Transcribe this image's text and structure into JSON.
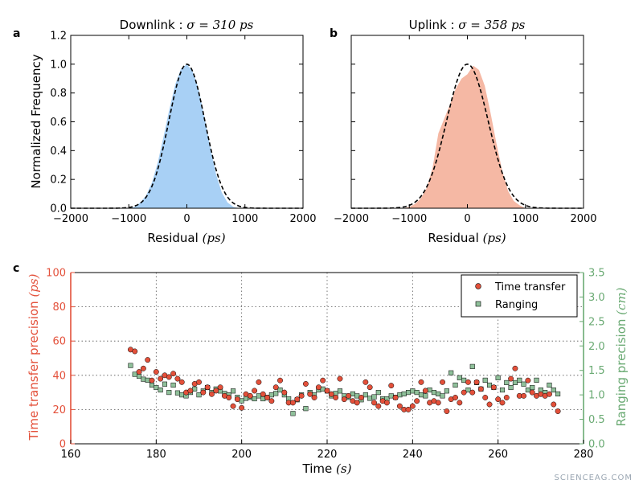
{
  "chart_data": [
    {
      "panel": "a",
      "type": "area",
      "title_prefix": "Downlink : ",
      "title_math": "σ = 310 ps",
      "xlabel": "Residual",
      "xlabel_unit": "(ps)",
      "ylabel": "Normalized Frequency",
      "xlim": [
        -2000,
        2000
      ],
      "ylim": [
        0,
        1.2
      ],
      "xticks": [
        "−2000",
        "−1000",
        "0",
        "1000",
        "2000"
      ],
      "yticks": [
        "0.0",
        "0.2",
        "0.4",
        "0.6",
        "0.8",
        "1.0",
        "1.2"
      ],
      "fill_color": "#a8d0f5",
      "fit_sigma": 310,
      "fit_center": 0,
      "series": [
        {
          "name": "histogram",
          "x": [
            -900,
            -800,
            -700,
            -600,
            -500,
            -400,
            -300,
            -200,
            -100,
            0,
            100,
            200,
            300,
            400,
            500,
            600,
            700,
            800,
            900
          ],
          "values": [
            0.01,
            0.04,
            0.09,
            0.18,
            0.32,
            0.5,
            0.69,
            0.86,
            0.97,
            1.0,
            0.95,
            0.83,
            0.64,
            0.43,
            0.24,
            0.11,
            0.04,
            0.01,
            0.0
          ]
        }
      ]
    },
    {
      "panel": "b",
      "type": "area",
      "title_prefix": "Uplink : ",
      "title_math": "σ = 358 ps",
      "xlabel": "Residual",
      "xlabel_unit": "(ps)",
      "xlim": [
        -2000,
        2000
      ],
      "ylim": [
        0,
        1.2
      ],
      "xticks": [
        "−2000",
        "−1000",
        "0",
        "1000",
        "2000"
      ],
      "yticks": [],
      "fill_color": "#f5b8a4",
      "fit_sigma": 358,
      "fit_center": 0,
      "series": [
        {
          "name": "histogram",
          "x": [
            -1000,
            -900,
            -800,
            -700,
            -600,
            -500,
            -400,
            -300,
            -200,
            -100,
            0,
            100,
            200,
            300,
            400,
            500,
            600,
            700,
            800,
            900,
            1000
          ],
          "values": [
            0.01,
            0.03,
            0.07,
            0.14,
            0.28,
            0.52,
            0.62,
            0.72,
            0.83,
            0.9,
            0.93,
            0.99,
            0.96,
            0.85,
            0.66,
            0.45,
            0.26,
            0.12,
            0.05,
            0.02,
            0.0
          ]
        }
      ]
    },
    {
      "panel": "c",
      "type": "scatter",
      "xlabel": "Time",
      "xlabel_unit": "(s)",
      "ylabel_left": "Time transfer precision",
      "ylabel_left_unit": "(ps)",
      "ylabel_right": "Ranging precision",
      "ylabel_right_unit": "(cm)",
      "xlim": [
        160,
        280
      ],
      "ylim_left": [
        0,
        100
      ],
      "ylim_right": [
        0,
        3.5
      ],
      "xticks": [
        "160",
        "180",
        "200",
        "220",
        "240",
        "260",
        "280"
      ],
      "yticks_left": [
        "0",
        "20",
        "40",
        "60",
        "80",
        "100"
      ],
      "yticks_right": [
        "0.0",
        "0.5",
        "1.0",
        "1.5",
        "2.0",
        "2.5",
        "3.0",
        "3.5"
      ],
      "left_color": "#e3503a",
      "right_color": "#6aaa73",
      "legend_location": "top-right",
      "series": [
        {
          "name": "Time transfer",
          "color": "#e3503a",
          "axis": "left",
          "x": [
            174,
            175,
            176,
            177,
            178,
            179,
            180,
            181,
            182,
            183,
            184,
            185,
            186,
            187,
            188,
            189,
            190,
            191,
            192,
            193,
            194,
            195,
            196,
            197,
            198,
            199,
            200,
            201,
            202,
            203,
            204,
            205,
            206,
            207,
            208,
            209,
            210,
            211,
            212,
            213,
            214,
            215,
            216,
            217,
            218,
            219,
            220,
            221,
            222,
            223,
            224,
            225,
            226,
            227,
            228,
            229,
            230,
            231,
            232,
            233,
            234,
            235,
            236,
            237,
            238,
            239,
            240,
            241,
            242,
            243,
            244,
            245,
            246,
            247,
            248,
            249,
            250,
            251,
            252,
            253,
            254,
            255,
            256,
            257,
            258,
            259,
            260,
            261,
            262,
            263,
            264,
            265,
            266,
            267,
            268,
            269,
            270,
            271,
            272,
            273,
            274
          ],
          "values": [
            55,
            54,
            42,
            44,
            49,
            37,
            42,
            38,
            40,
            39,
            41,
            38,
            36,
            30,
            31,
            35,
            36,
            30,
            33,
            29,
            31,
            33,
            28,
            27,
            22,
            26,
            21,
            29,
            28,
            31,
            36,
            29,
            27,
            25,
            33,
            37,
            30,
            24,
            24,
            26,
            28,
            35,
            29,
            27,
            33,
            37,
            31,
            29,
            27,
            38,
            26,
            28,
            25,
            24,
            27,
            36,
            33,
            24,
            22,
            25,
            24,
            34,
            27,
            22,
            20,
            20,
            22,
            25,
            36,
            31,
            24,
            25,
            24,
            36,
            19,
            26,
            27,
            24,
            30,
            36,
            30,
            36,
            32,
            27,
            23,
            33,
            26,
            24,
            27,
            38,
            44,
            28,
            28,
            37,
            30,
            28,
            29,
            28,
            29,
            23,
            19
          ]
        },
        {
          "name": "Ranging",
          "color": "#8fc09a",
          "axis": "right",
          "x": [
            174,
            175,
            176,
            177,
            178,
            179,
            180,
            181,
            182,
            183,
            184,
            185,
            186,
            187,
            188,
            189,
            190,
            191,
            192,
            193,
            194,
            195,
            196,
            197,
            198,
            199,
            200,
            201,
            202,
            203,
            204,
            205,
            206,
            207,
            208,
            209,
            210,
            211,
            212,
            213,
            214,
            215,
            216,
            217,
            218,
            219,
            220,
            221,
            222,
            223,
            224,
            225,
            226,
            227,
            228,
            229,
            230,
            231,
            232,
            233,
            234,
            235,
            236,
            237,
            238,
            239,
            240,
            241,
            242,
            243,
            244,
            245,
            246,
            247,
            248,
            249,
            250,
            251,
            252,
            253,
            254,
            255,
            256,
            257,
            258,
            259,
            260,
            261,
            262,
            263,
            264,
            265,
            266,
            267,
            268,
            269,
            270,
            271,
            272,
            273,
            274
          ],
          "values": [
            1.6,
            1.42,
            1.38,
            1.32,
            1.3,
            1.2,
            1.15,
            1.1,
            1.22,
            1.05,
            1.2,
            1.04,
            1.0,
            0.98,
            1.05,
            1.12,
            1.0,
            1.08,
            1.15,
            1.05,
            1.12,
            1.08,
            1.03,
            1.0,
            1.08,
            0.95,
            0.88,
            0.93,
            0.95,
            0.92,
            0.98,
            0.92,
            0.95,
            1.0,
            1.03,
            1.1,
            1.0,
            0.92,
            0.62,
            0.9,
            1.0,
            0.72,
            1.05,
            1.0,
            1.1,
            1.12,
            1.08,
            0.98,
            1.03,
            1.08,
            0.98,
            0.95,
            1.02,
            0.98,
            0.9,
            1.0,
            0.93,
            0.96,
            1.05,
            0.92,
            0.92,
            0.98,
            0.95,
            1.0,
            1.02,
            1.05,
            1.08,
            1.05,
            1.0,
            0.98,
            1.1,
            1.05,
            1.02,
            0.98,
            1.08,
            1.45,
            1.2,
            1.35,
            1.3,
            1.1,
            1.58,
            1.25,
            1.12,
            1.3,
            1.2,
            1.15,
            1.35,
            1.1,
            1.25,
            1.15,
            1.25,
            1.3,
            1.22,
            1.1,
            1.15,
            1.3,
            1.1,
            1.05,
            1.2,
            1.1,
            1.02
          ]
        }
      ]
    }
  ],
  "watermark": "SCIENCEAG.COM"
}
